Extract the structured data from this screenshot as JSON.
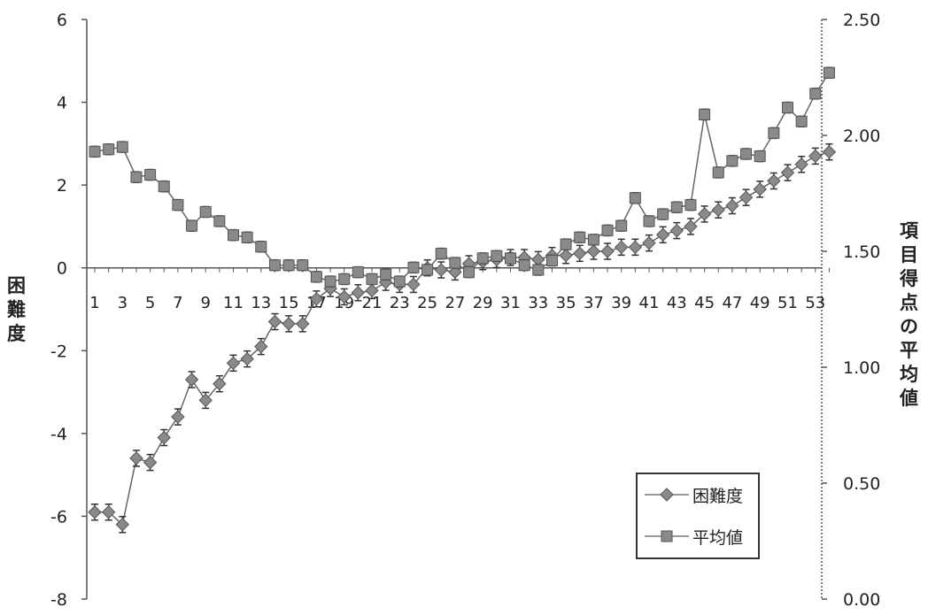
{
  "chart_data": {
    "type": "line",
    "y_left": {
      "label": "困難度",
      "ylim": [
        -8,
        6
      ],
      "ticks": [
        "6",
        "4",
        "2",
        "0",
        "-2",
        "-4",
        "-6",
        "-8"
      ]
    },
    "y_right": {
      "label": "項目得点の平均値",
      "ylim": [
        0,
        2.5
      ],
      "ticks": [
        "2.50",
        "2.00",
        "1.50",
        "1.00",
        "0.50",
        "0.00"
      ]
    },
    "x": [
      1,
      2,
      3,
      4,
      5,
      6,
      7,
      8,
      9,
      10,
      11,
      12,
      13,
      14,
      15,
      16,
      17,
      18,
      19,
      20,
      21,
      22,
      23,
      24,
      25,
      26,
      27,
      28,
      29,
      30,
      31,
      32,
      33,
      34,
      35,
      36,
      37,
      38,
      39,
      40,
      41,
      42,
      43,
      44,
      45,
      46,
      47,
      48,
      49,
      50,
      51,
      52,
      53,
      54
    ],
    "x_tick_labels": [
      "1",
      "3",
      "5",
      "7",
      "9",
      "11",
      "13",
      "15",
      "17",
      "19",
      "21",
      "23",
      "25",
      "27",
      "29",
      "31",
      "33",
      "35",
      "37",
      "39",
      "41",
      "43",
      "45",
      "47",
      "49",
      "51",
      "53"
    ],
    "series": [
      {
        "name": "困難度",
        "axis": "left",
        "marker": "diamond",
        "values": [
          -5.9,
          -5.9,
          -6.2,
          -4.6,
          -4.7,
          -4.1,
          -3.6,
          -2.7,
          -3.2,
          -2.8,
          -2.3,
          -2.2,
          -1.9,
          -1.3,
          -1.35,
          -1.35,
          -0.75,
          -0.5,
          -0.7,
          -0.6,
          -0.55,
          -0.35,
          -0.4,
          -0.4,
          0.0,
          -0.05,
          -0.1,
          0.1,
          0.15,
          0.2,
          0.25,
          0.25,
          0.2,
          0.3,
          0.3,
          0.35,
          0.4,
          0.4,
          0.5,
          0.5,
          0.6,
          0.8,
          0.9,
          1.0,
          1.3,
          1.4,
          1.5,
          1.7,
          1.9,
          2.1,
          2.3,
          2.5,
          2.7,
          2.8
        ]
      },
      {
        "name": "平均値",
        "axis": "right",
        "marker": "square",
        "values": [
          1.93,
          1.94,
          1.95,
          1.82,
          1.83,
          1.78,
          1.7,
          1.61,
          1.67,
          1.63,
          1.57,
          1.56,
          1.52,
          1.44,
          1.44,
          1.44,
          1.39,
          1.37,
          1.38,
          1.41,
          1.38,
          1.4,
          1.37,
          1.43,
          1.42,
          1.49,
          1.45,
          1.41,
          1.47,
          1.48,
          1.47,
          1.44,
          1.42,
          1.46,
          1.53,
          1.56,
          1.55,
          1.59,
          1.61,
          1.73,
          1.63,
          1.66,
          1.69,
          1.7,
          2.09,
          1.84,
          1.89,
          1.92,
          1.91,
          2.01,
          2.12,
          2.06,
          2.18,
          2.27
        ]
      }
    ],
    "error_bars": true,
    "legend": {
      "position": "bottom-right"
    },
    "grid": false
  },
  "colors": {
    "series_1": "#8a8a8a",
    "series_2": "#8a8a8a",
    "axis": "#555555"
  }
}
